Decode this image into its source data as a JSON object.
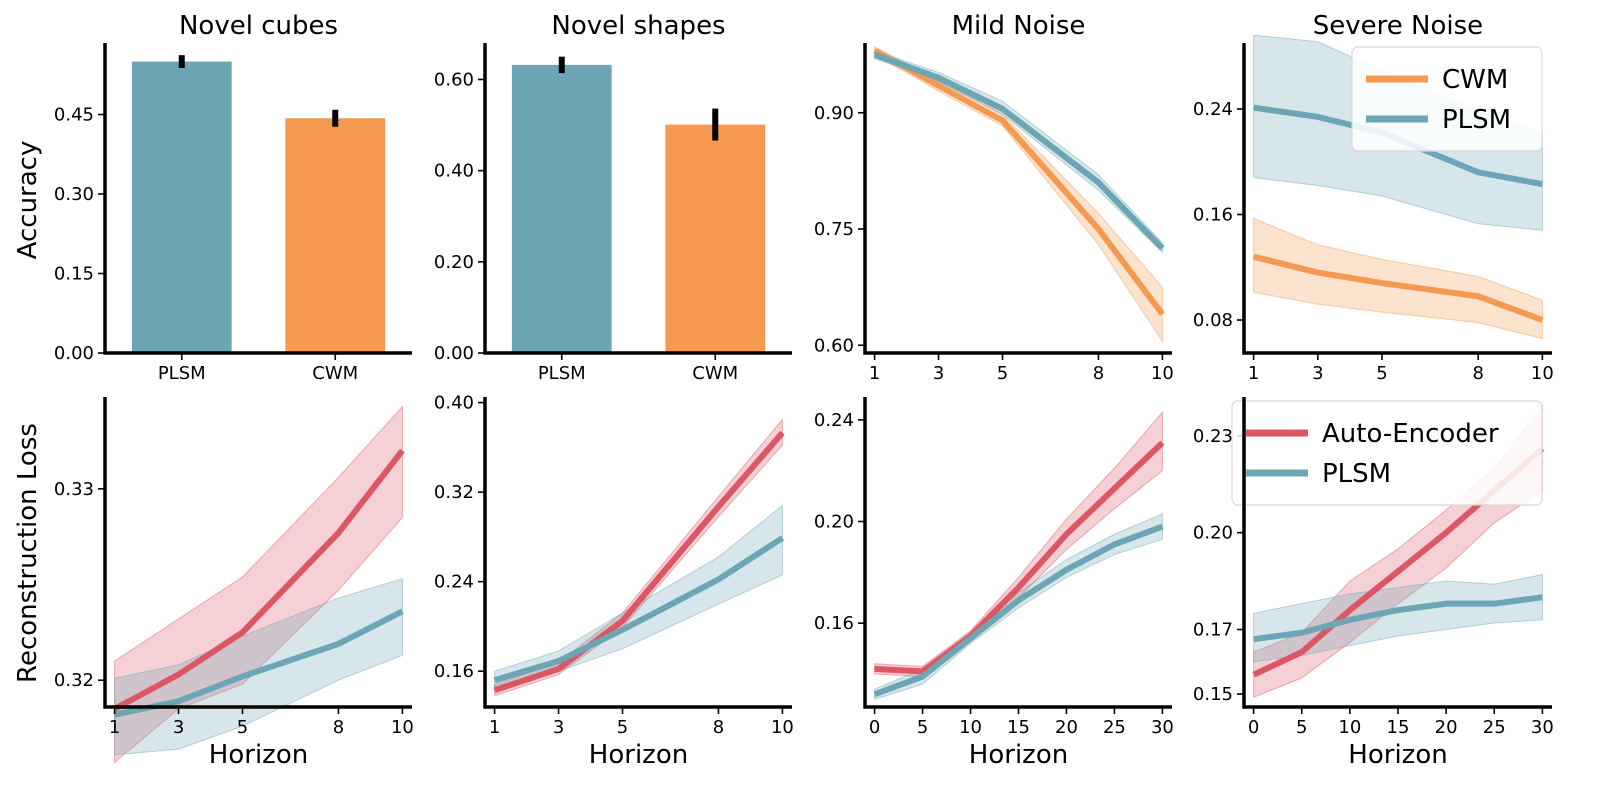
{
  "colors": {
    "plsm": "#6ca5b4",
    "cwm": "#f4994f",
    "ae": "#dc5764",
    "axis": "#000000"
  },
  "row_labels": {
    "top": "Accuracy",
    "bottom": "Reconstruction Loss"
  },
  "x_label": "Horizon",
  "chart_data": [
    {
      "id": "p00",
      "type": "bar",
      "title": "Novel cubes",
      "categories": [
        "PLSM",
        "CWM"
      ],
      "values": [
        0.55,
        0.443
      ],
      "errors": [
        0.012,
        0.016
      ],
      "colors": [
        "plsm",
        "cwm"
      ],
      "ylim": [
        0,
        0.585
      ],
      "yticks": [
        0,
        0.15,
        0.3,
        0.45
      ],
      "tick_decimals": 2
    },
    {
      "id": "p01",
      "type": "bar",
      "title": "Novel shapes",
      "categories": [
        "PLSM",
        "CWM"
      ],
      "values": [
        0.632,
        0.501
      ],
      "errors": [
        0.018,
        0.035
      ],
      "colors": [
        "plsm",
        "cwm"
      ],
      "ylim": [
        0,
        0.68
      ],
      "yticks": [
        0,
        0.2,
        0.4,
        0.6
      ],
      "tick_decimals": 2
    },
    {
      "id": "p02",
      "type": "line",
      "title": "Mild Noise",
      "x": [
        1,
        3,
        5,
        8,
        10
      ],
      "xlim": [
        0.7,
        10.3
      ],
      "xticks": [
        1,
        3,
        5,
        8,
        10
      ],
      "ylim": [
        0.59,
        0.99
      ],
      "yticks": [
        0.6,
        0.75,
        0.9
      ],
      "tick_decimals": 2,
      "series": [
        {
          "name": "CWM",
          "color": "cwm",
          "values": [
            0.98,
            0.935,
            0.89,
            0.75,
            0.64
          ],
          "lower": [
            0.975,
            0.928,
            0.883,
            0.73,
            0.605
          ],
          "upper": [
            0.985,
            0.942,
            0.898,
            0.77,
            0.675
          ]
        },
        {
          "name": "PLSM",
          "color": "plsm",
          "values": [
            0.975,
            0.945,
            0.905,
            0.81,
            0.725
          ],
          "lower": [
            0.97,
            0.94,
            0.898,
            0.8,
            0.72
          ],
          "upper": [
            0.98,
            0.952,
            0.915,
            0.82,
            0.732
          ]
        }
      ]
    },
    {
      "id": "p03",
      "type": "line",
      "title": "Severe Noise",
      "x": [
        1,
        3,
        5,
        8,
        10
      ],
      "xlim": [
        0.7,
        10.3
      ],
      "xticks": [
        1,
        3,
        5,
        8,
        10
      ],
      "ylim": [
        0.055,
        0.29
      ],
      "yticks": [
        0.08,
        0.16,
        0.24
      ],
      "tick_decimals": 2,
      "legend": {
        "position": "top-right",
        "entries": [
          {
            "label": "CWM",
            "color": "cwm"
          },
          {
            "label": "PLSM",
            "color": "plsm"
          }
        ]
      },
      "series": [
        {
          "name": "CWM",
          "color": "cwm",
          "values": [
            0.128,
            0.116,
            0.108,
            0.098,
            0.08
          ],
          "lower": [
            0.101,
            0.092,
            0.086,
            0.078,
            0.066
          ],
          "upper": [
            0.157,
            0.137,
            0.126,
            0.113,
            0.095
          ]
        },
        {
          "name": "PLSM",
          "color": "plsm",
          "values": [
            0.241,
            0.234,
            0.222,
            0.192,
            0.183
          ],
          "lower": [
            0.188,
            0.182,
            0.174,
            0.153,
            0.148
          ],
          "upper": [
            0.296,
            0.291,
            0.269,
            0.238,
            0.222
          ]
        }
      ]
    },
    {
      "id": "p10",
      "type": "line",
      "title": "",
      "x": [
        1,
        3,
        5,
        8,
        10
      ],
      "xlim": [
        0.7,
        10.3
      ],
      "xticks": [
        1,
        3,
        5,
        8,
        10
      ],
      "ylim": [
        0.3186,
        0.3348
      ],
      "yticks": [
        0.32,
        0.33
      ],
      "tick_decimals": 2,
      "xlabel": "Horizon",
      "series": [
        {
          "name": "Auto-Encoder",
          "color": "ae",
          "values": [
            0.3185,
            0.3203,
            0.3225,
            0.3277,
            0.332
          ],
          "lower": [
            0.3157,
            0.3185,
            0.3198,
            0.3247,
            0.3285
          ],
          "upper": [
            0.321,
            0.3232,
            0.3254,
            0.3306,
            0.3343
          ]
        },
        {
          "name": "PLSM",
          "color": "plsm",
          "values": [
            0.3182,
            0.3189,
            0.3202,
            0.3219,
            0.3236
          ],
          "lower": [
            0.3161,
            0.3164,
            0.3176,
            0.32,
            0.3213
          ],
          "upper": [
            0.3201,
            0.3208,
            0.3223,
            0.3243,
            0.3253
          ]
        }
      ]
    },
    {
      "id": "p11",
      "type": "line",
      "title": "",
      "x": [
        1,
        3,
        5,
        8,
        10
      ],
      "xlim": [
        0.7,
        10.3
      ],
      "xticks": [
        1,
        3,
        5,
        8,
        10
      ],
      "ylim": [
        0.128,
        0.405
      ],
      "yticks": [
        0.16,
        0.24,
        0.32,
        0.4
      ],
      "tick_decimals": 2,
      "xlabel": "Horizon",
      "series": [
        {
          "name": "Auto-Encoder",
          "color": "ae",
          "values": [
            0.143,
            0.162,
            0.205,
            0.307,
            0.373
          ],
          "lower": [
            0.138,
            0.157,
            0.199,
            0.298,
            0.362
          ],
          "upper": [
            0.148,
            0.168,
            0.212,
            0.316,
            0.385
          ]
        },
        {
          "name": "PLSM",
          "color": "plsm",
          "values": [
            0.152,
            0.169,
            0.197,
            0.242,
            0.279
          ],
          "lower": [
            0.146,
            0.16,
            0.18,
            0.22,
            0.246
          ],
          "upper": [
            0.16,
            0.178,
            0.212,
            0.262,
            0.308
          ]
        }
      ]
    },
    {
      "id": "p12",
      "type": "line",
      "title": "",
      "x": [
        0,
        5,
        10,
        15,
        20,
        25,
        30
      ],
      "xlim": [
        -1,
        31
      ],
      "xticks": [
        0,
        5,
        10,
        15,
        20,
        25,
        30
      ],
      "ylim": [
        0.127,
        0.249
      ],
      "yticks": [
        0.16,
        0.2,
        0.24
      ],
      "tick_decimals": 2,
      "xlabel": "Horizon",
      "series": [
        {
          "name": "Auto-Encoder",
          "color": "ae",
          "values": [
            0.142,
            0.141,
            0.155,
            0.174,
            0.195,
            0.213,
            0.231
          ],
          "lower": [
            0.14,
            0.139,
            0.153,
            0.17,
            0.189,
            0.205,
            0.22
          ],
          "upper": [
            0.144,
            0.143,
            0.157,
            0.178,
            0.201,
            0.221,
            0.243
          ]
        },
        {
          "name": "PLSM",
          "color": "plsm",
          "values": [
            0.132,
            0.139,
            0.154,
            0.169,
            0.181,
            0.191,
            0.198
          ],
          "lower": [
            0.13,
            0.136,
            0.152,
            0.166,
            0.178,
            0.187,
            0.193
          ],
          "upper": [
            0.134,
            0.142,
            0.156,
            0.172,
            0.185,
            0.195,
            0.203
          ]
        }
      ]
    },
    {
      "id": "p13",
      "type": "line",
      "title": "",
      "x": [
        0,
        5,
        10,
        15,
        20,
        25,
        30
      ],
      "xlim": [
        -1,
        31
      ],
      "xticks": [
        0,
        5,
        10,
        15,
        20,
        25,
        30
      ],
      "ylim": [
        0.146,
        0.242
      ],
      "yticks": [
        0.15,
        0.17,
        0.2,
        0.23
      ],
      "tick_decimals": 2,
      "xlabel": "Horizon",
      "legend": {
        "position": "top-right",
        "entries": [
          {
            "label": "Auto-Encoder",
            "color": "ae"
          },
          {
            "label": "PLSM",
            "color": "plsm"
          }
        ]
      },
      "series": [
        {
          "name": "Auto-Encoder",
          "color": "ae",
          "values": [
            0.156,
            0.163,
            0.176,
            0.188,
            0.2,
            0.213,
            0.226
          ],
          "lower": [
            0.149,
            0.155,
            0.166,
            0.178,
            0.189,
            0.203,
            0.213
          ],
          "upper": [
            0.163,
            0.169,
            0.185,
            0.195,
            0.207,
            0.22,
            0.239
          ]
        },
        {
          "name": "PLSM",
          "color": "plsm",
          "values": [
            0.167,
            0.169,
            0.173,
            0.176,
            0.178,
            0.178,
            0.18
          ],
          "lower": [
            0.16,
            0.162,
            0.165,
            0.168,
            0.17,
            0.172,
            0.173
          ],
          "upper": [
            0.175,
            0.178,
            0.181,
            0.183,
            0.185,
            0.184,
            0.187
          ]
        }
      ]
    }
  ]
}
